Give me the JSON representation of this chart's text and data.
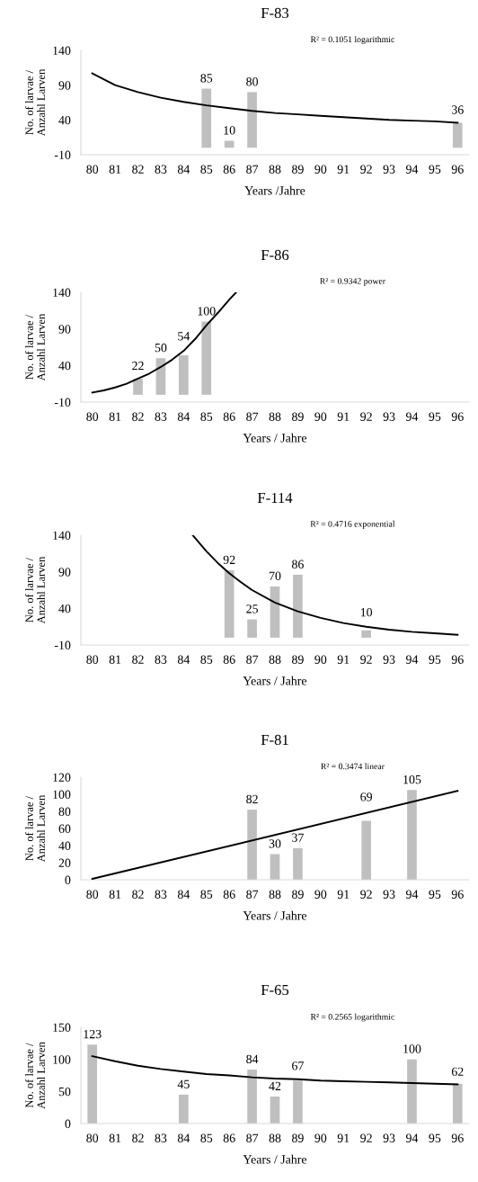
{
  "chart_data": [
    {
      "type": "bar",
      "title": "F-83",
      "xlabel": "Years /Jahre",
      "ylabel": "No. of larvae /\nAnzahl Larven",
      "annotations": [
        "R² = 0.1051 logarithmic"
      ],
      "xlim": [
        79.5,
        96.5
      ],
      "xticks": [
        80,
        81,
        82,
        83,
        84,
        85,
        86,
        87,
        88,
        89,
        90,
        91,
        92,
        93,
        94,
        95,
        96
      ],
      "ylim": [
        -10,
        140
      ],
      "yticks": [
        -10,
        40,
        90,
        140
      ],
      "grid": false,
      "series": [
        {
          "color": "#bfbfbf",
          "x": [
            85,
            86,
            87,
            96
          ],
          "values": [
            85,
            10,
            80,
            36
          ],
          "value_labels": [
            "85",
            "10",
            "80",
            "36"
          ]
        },
        {
          "type": "line",
          "color": "#000000",
          "marker": "none",
          "x": [
            80,
            81,
            82,
            83,
            84,
            85,
            86,
            87,
            88,
            89,
            90,
            91,
            92,
            93,
            94,
            95,
            96
          ],
          "values": [
            107,
            90,
            80,
            72,
            66,
            61,
            57,
            53,
            50,
            48,
            46,
            44,
            42,
            40,
            39,
            38,
            36
          ]
        }
      ]
    },
    {
      "type": "bar",
      "title": "F-86",
      "xlabel": "Years / Jahre",
      "ylabel": "No. of larvae /\nAnzahl Larven",
      "annotations": [
        "R² = 0.9342 power"
      ],
      "xlim": [
        79.5,
        96.5
      ],
      "xticks": [
        80,
        81,
        82,
        83,
        84,
        85,
        86,
        87,
        88,
        89,
        90,
        91,
        92,
        93,
        94,
        95,
        96
      ],
      "ylim": [
        -10,
        140
      ],
      "yticks": [
        -10,
        40,
        90,
        140
      ],
      "grid": false,
      "series": [
        {
          "color": "#bfbfbf",
          "x": [
            82,
            83,
            84,
            85
          ],
          "values": [
            22,
            50,
            54,
            100
          ],
          "value_labels": [
            "22",
            "50",
            "54",
            "100"
          ]
        },
        {
          "type": "line",
          "color": "#000000",
          "marker": "none",
          "x": [
            80,
            80.5,
            81,
            81.5,
            82,
            82.5,
            83,
            83.5,
            84,
            84.5,
            85,
            85.5,
            86,
            86.3
          ],
          "values": [
            3,
            6,
            10,
            15,
            22,
            29,
            38,
            48,
            60,
            76,
            95,
            112,
            130,
            140
          ]
        }
      ]
    },
    {
      "type": "bar",
      "title": "F-114",
      "xlabel": "Years / Jahre",
      "ylabel": "No. of larvae /\nAnzahl Larven",
      "annotations": [
        "R² = 0.4716 exponential"
      ],
      "xlim": [
        79.5,
        96.5
      ],
      "xticks": [
        80,
        81,
        82,
        83,
        84,
        85,
        86,
        87,
        88,
        89,
        90,
        91,
        92,
        93,
        94,
        95,
        96
      ],
      "ylim": [
        -10,
        140
      ],
      "yticks": [
        -10,
        40,
        90,
        140
      ],
      "grid": false,
      "series": [
        {
          "color": "#bfbfbf",
          "x": [
            86,
            87,
            88,
            89,
            92
          ],
          "values": [
            92,
            25,
            70,
            86,
            10
          ],
          "value_labels": [
            "92",
            "25",
            "70",
            "86",
            "10"
          ]
        },
        {
          "type": "line",
          "color": "#000000",
          "marker": "none",
          "x": [
            84.4,
            85,
            85.5,
            86,
            86.5,
            87,
            88,
            89,
            90,
            91,
            92,
            93,
            94,
            95,
            96
          ],
          "values": [
            140,
            118,
            102,
            88,
            76,
            65,
            48,
            36,
            27,
            20,
            15,
            11,
            8,
            6,
            4
          ]
        }
      ]
    },
    {
      "type": "bar",
      "title": "F-81",
      "xlabel": "Years / Jahre",
      "ylabel": "No. of larvae /\nAnzahl Larven",
      "annotations": [
        "R² = 0.3474 linear"
      ],
      "xlim": [
        79.5,
        96.5
      ],
      "xticks": [
        80,
        81,
        82,
        83,
        84,
        85,
        86,
        87,
        88,
        89,
        90,
        91,
        92,
        93,
        94,
        95,
        96
      ],
      "ylim": [
        0,
        120
      ],
      "yticks": [
        0,
        20,
        40,
        60,
        80,
        100,
        120
      ],
      "grid": false,
      "series": [
        {
          "color": "#bfbfbf",
          "x": [
            87,
            88,
            89,
            92,
            94
          ],
          "values": [
            82,
            30,
            37,
            69,
            105
          ],
          "value_labels": [
            "82",
            "30",
            "37",
            "69",
            "105"
          ]
        },
        {
          "type": "line",
          "color": "#000000",
          "marker": "none",
          "x": [
            80,
            96
          ],
          "values": [
            1,
            104
          ]
        }
      ]
    },
    {
      "type": "bar",
      "title": "F-65",
      "xlabel": "Years / Jahre",
      "ylabel": "No. of larvae /\nAnzahl Larven",
      "annotations": [
        "R² = 0.2565 logarithmic"
      ],
      "xlim": [
        79.5,
        96.5
      ],
      "xticks": [
        80,
        81,
        82,
        83,
        84,
        85,
        86,
        87,
        88,
        89,
        90,
        91,
        92,
        93,
        94,
        95,
        96
      ],
      "ylim": [
        0,
        150
      ],
      "yticks": [
        0,
        50,
        100,
        150
      ],
      "grid": false,
      "series": [
        {
          "color": "#bfbfbf",
          "x": [
            80,
            84,
            87,
            88,
            89,
            94,
            96
          ],
          "values": [
            123,
            45,
            84,
            42,
            67,
            100,
            62
          ],
          "value_labels": [
            "123",
            "45",
            "84",
            "42",
            "67",
            "100",
            "62"
          ]
        },
        {
          "type": "line",
          "color": "#000000",
          "marker": "none",
          "x": [
            80,
            81,
            82,
            83,
            84,
            85,
            86,
            87,
            88,
            89,
            90,
            91,
            92,
            93,
            94,
            95,
            96
          ],
          "values": [
            105,
            97,
            90,
            85,
            81,
            77,
            75,
            72,
            70,
            69,
            67,
            66,
            65,
            64,
            63,
            62,
            61
          ]
        }
      ]
    }
  ]
}
